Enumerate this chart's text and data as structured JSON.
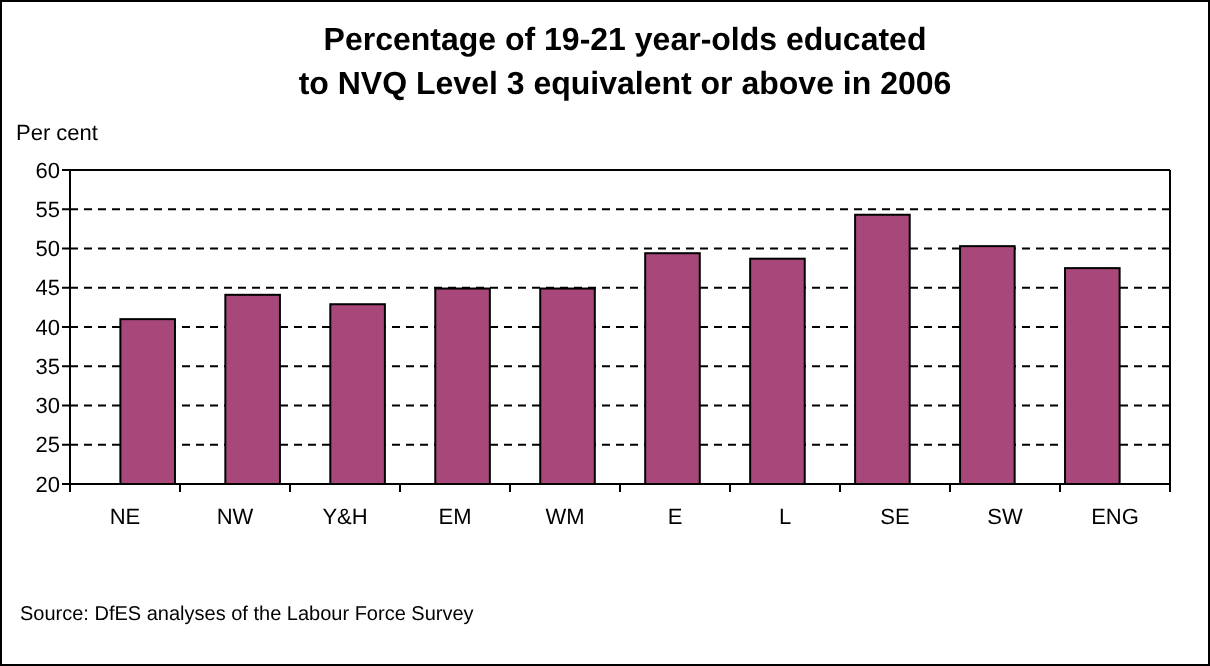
{
  "chart_data": {
    "type": "bar",
    "title": "Percentage of 19-21 year-olds educated\nto NVQ Level 3 equivalent or above in 2006",
    "ylabel": "Per cent",
    "categories": [
      "NE",
      "NW",
      "Y&H",
      "EM",
      "WM",
      "E",
      "L",
      "SE",
      "SW",
      "ENG"
    ],
    "values": [
      41.0,
      44.1,
      42.9,
      44.9,
      44.9,
      49.4,
      48.7,
      54.3,
      50.3,
      47.5
    ],
    "color": "#a8487a",
    "ylim": [
      20,
      60
    ],
    "yticks": [
      20,
      25,
      30,
      35,
      40,
      45,
      50,
      55,
      60
    ],
    "grid": "y",
    "annotations": [
      "Source: DfES analyses of the Labour Force Survey"
    ]
  }
}
